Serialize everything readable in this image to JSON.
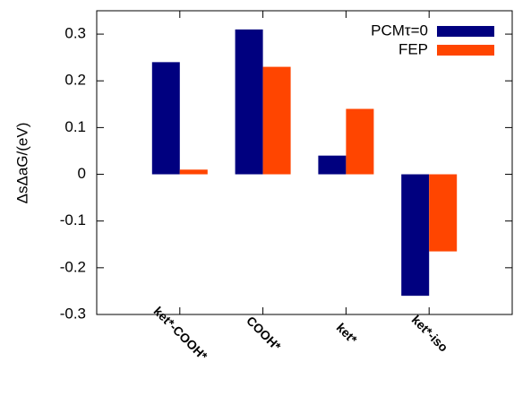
{
  "chart_data": {
    "type": "bar",
    "y_label": "ΔsΔaG/(eV)",
    "categories": [
      "ket*-COOH*",
      "COOH*",
      "ket*",
      "ket*-iso"
    ],
    "series": [
      {
        "name": "PCMτ=0",
        "color": "#00007f",
        "values": [
          0.24,
          0.31,
          0.04,
          -0.26
        ]
      },
      {
        "name": "FEP",
        "color": "#ff4500",
        "values": [
          0.01,
          0.23,
          0.14,
          -0.165
        ]
      }
    ],
    "ylim": [
      -0.3,
      0.35
    ],
    "yticks": [
      -0.3,
      -0.2,
      -0.1,
      0,
      0.1,
      0.2,
      0.3
    ],
    "legend": "upper right"
  }
}
